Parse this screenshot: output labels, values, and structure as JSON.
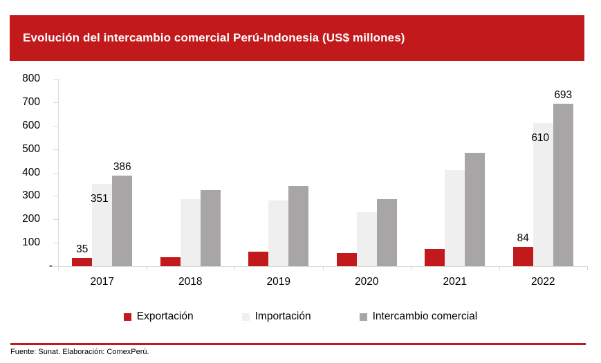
{
  "header": {
    "title": "Evolución del intercambio comercial Perú-Indonesia (US$ millones)"
  },
  "chart_data": {
    "type": "bar",
    "title": "Evolución del intercambio comercial Perú-Indonesia (US$ millones)",
    "categories": [
      "2017",
      "2018",
      "2019",
      "2020",
      "2021",
      "2022"
    ],
    "series": [
      {
        "name": "Exportación",
        "color": "#c2191c",
        "values": [
          35,
          38,
          61,
          56,
          73,
          84
        ],
        "data_labels": [
          "35",
          null,
          null,
          null,
          null,
          "84"
        ],
        "label_position": "outside"
      },
      {
        "name": "Importación",
        "color": "#f0efef",
        "values": [
          351,
          287,
          281,
          229,
          410,
          610
        ],
        "data_labels": [
          "351",
          null,
          null,
          null,
          null,
          "610"
        ],
        "label_position": "inside"
      },
      {
        "name": "Intercambio comercial",
        "color": "#a7a5a6",
        "values": [
          386,
          325,
          342,
          285,
          483,
          693
        ],
        "data_labels": [
          "386",
          null,
          null,
          null,
          null,
          "693"
        ],
        "label_position": "outside"
      }
    ],
    "ylim": [
      0,
      800
    ],
    "ytick_step": 100,
    "ytick_labels": [
      "800",
      "700",
      "600",
      "500",
      "400",
      "300",
      "200",
      "100",
      "-"
    ],
    "grid": false,
    "legend_position": "bottom",
    "axis_color": "#d9d9d9"
  },
  "legend": {
    "items": [
      {
        "label": "Exportación",
        "color": "#c2191c"
      },
      {
        "label": "Importación",
        "color": "#f0efef"
      },
      {
        "label": "Intercambio comercial",
        "color": "#a7a5a6"
      }
    ]
  },
  "footer": {
    "source": "Fuente: Sunat. Elaboración: ComexPerú."
  }
}
